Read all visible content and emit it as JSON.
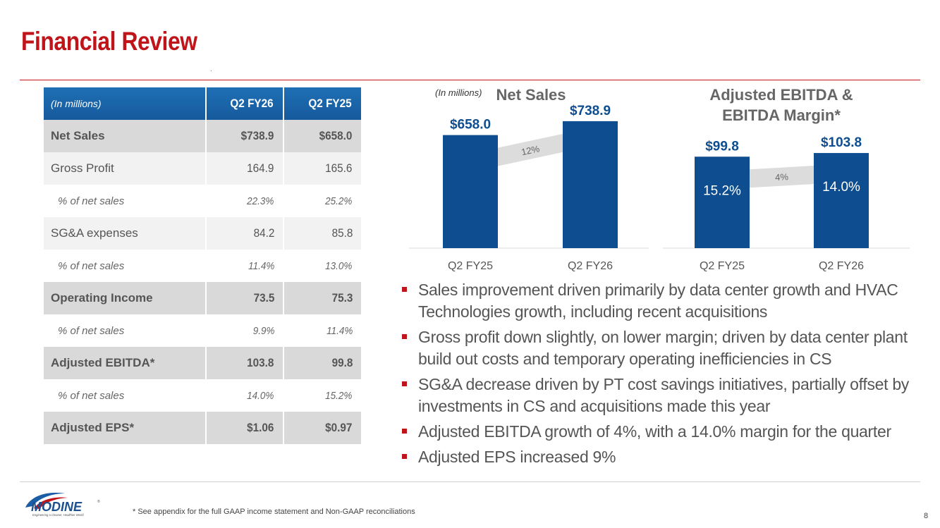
{
  "title": "Financial Review",
  "table": {
    "headers": [
      "(In millions)",
      "Q2 FY26",
      "Q2 FY25"
    ],
    "rows": [
      {
        "label": "Net Sales",
        "v1": "$738.9",
        "v2": "$658.0",
        "style": "bold"
      },
      {
        "label": "Gross Profit",
        "v1": "164.9",
        "v2": "165.6",
        "style": "norm"
      },
      {
        "label": "% of net sales",
        "v1": "22.3%",
        "v2": "25.2%",
        "style": "pct"
      },
      {
        "label": "SG&A expenses",
        "v1": "84.2",
        "v2": "85.8",
        "style": "norm"
      },
      {
        "label": "% of net sales",
        "v1": "11.4%",
        "v2": "13.0%",
        "style": "pct"
      },
      {
        "label": "Operating Income",
        "v1": "73.5",
        "v2": "75.3",
        "style": "bold"
      },
      {
        "label": "% of net sales",
        "v1": "9.9%",
        "v2": "11.4%",
        "style": "pct"
      },
      {
        "label": "Adjusted EBITDA*",
        "v1": "103.8",
        "v2": "99.8",
        "style": "bold"
      },
      {
        "label": "% of net sales",
        "v1": "14.0%",
        "v2": "15.2%",
        "style": "pct"
      },
      {
        "label": "Adjusted EPS*",
        "v1": "$1.06",
        "v2": "$0.97",
        "style": "bold"
      }
    ]
  },
  "chart_data": [
    {
      "type": "bar",
      "title": "Net Sales",
      "units_note": "(In millions)",
      "categories": [
        "Q2 FY25",
        "Q2 FY26"
      ],
      "values": [
        658.0,
        738.9
      ],
      "value_labels": [
        "$658.0",
        "$738.9"
      ],
      "growth_label": "12%",
      "ylim": [
        0,
        800
      ],
      "color": "#0e4d8f"
    },
    {
      "type": "bar",
      "title": "Adjusted EBITDA & EBITDA Margin*",
      "title_lines": [
        "Adjusted EBITDA &",
        "EBITDA Margin*"
      ],
      "categories": [
        "Q2 FY25",
        "Q2 FY26"
      ],
      "values": [
        99.8,
        103.8
      ],
      "value_labels": [
        "$99.8",
        "$103.8"
      ],
      "inner_labels": [
        "15.2%",
        "14.0%"
      ],
      "growth_label": "4%",
      "ylim": [
        0,
        150
      ],
      "color": "#0e4d8f"
    }
  ],
  "bullets": [
    "Sales improvement driven primarily by data center growth and HVAC Technologies growth, including recent acquisitions",
    "Gross profit down slightly, on lower margin; driven by data center plant build out costs and temporary operating inefficiencies in CS",
    "SG&A decrease driven by PT cost savings initiatives, partially offset by investments in CS and acquisitions made this year",
    "Adjusted EBITDA growth of 4%, with a 14.0% margin for the quarter",
    "Adjusted EPS increased 9%"
  ],
  "logo": {
    "name": "MODINE",
    "tagline": "Engineering a Cleaner, Healthier World"
  },
  "footnote": "* See appendix for the full GAAP income statement and Non-GAAP reconciliations",
  "page_number": "8",
  "colors": {
    "accent": "#c0141b",
    "bar": "#0e4d8f",
    "header": "#1a64a8"
  }
}
